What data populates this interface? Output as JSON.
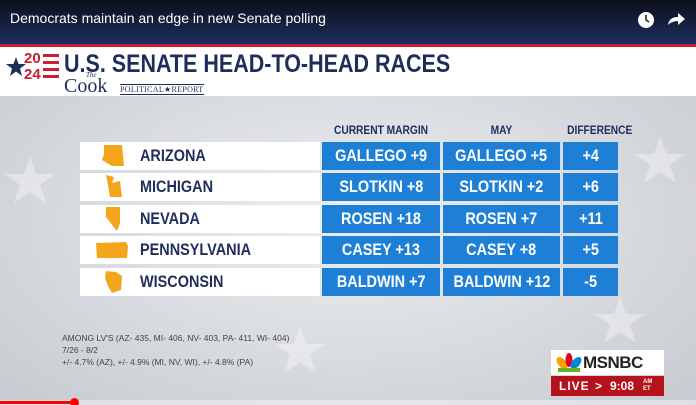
{
  "video_title": "Democrats maintain an edge in new Senate polling",
  "header": {
    "logo_top": "20",
    "logo_bottom": "24",
    "logo_the": "The",
    "logo_cook": "Cook",
    "logo_report": "POLITICAL★REPORT",
    "title": "U.S. SENATE HEAD-TO-HEAD RACES"
  },
  "table": {
    "columns": [
      "CURRENT MARGIN",
      "MAY",
      "DIFFERENCE"
    ],
    "rows": [
      [
        "ARIZONA",
        "GALLEGO +9",
        "GALLEGO +5",
        "+4"
      ],
      [
        "MICHIGAN",
        "SLOTKIN +8",
        "SLOTKIN +2",
        "+6"
      ],
      [
        "NEVADA",
        "ROSEN +18",
        "ROSEN +7",
        "+11"
      ],
      [
        "PENNSYLVANIA",
        "CASEY +13",
        "CASEY +8",
        "+5"
      ],
      [
        "WISCONSIN",
        "BALDWIN +7",
        "BALDWIN +12",
        "-5"
      ]
    ]
  },
  "footnotes": [
    "AMONG LV'S (AZ- 435, MI- 406, NV- 403, PA- 411, WI- 404)",
    "7/26 - 8/2",
    "+/- 4.7% (AZ), +/- 4.9% (MI, NV, WI), +/- 4.8% (PA)"
  ],
  "network": {
    "name": "MSNBC",
    "live": "LIVE",
    "arrow": ">",
    "time": "9:08",
    "zone": "AM ET"
  }
}
